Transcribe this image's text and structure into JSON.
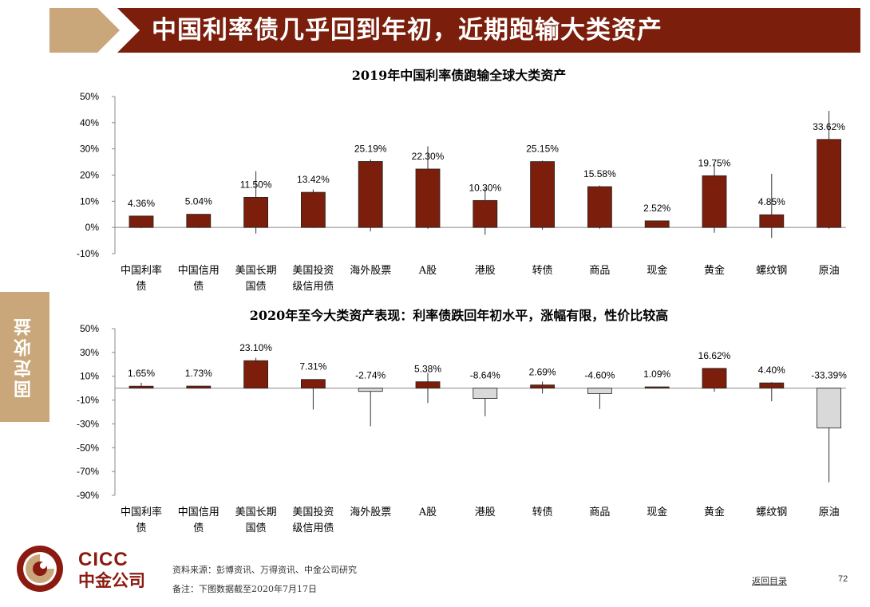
{
  "header": {
    "title": "中国利率债几乎回到年初，近期跑输大类资产"
  },
  "side_tab": {
    "label": "固定收益"
  },
  "colors": {
    "title_bar": "#7b1e0c",
    "chevron": "#c9a77b",
    "bar_positive": "#7b1e0c",
    "bar_negative": "#d9d9d9"
  },
  "chart_data": [
    {
      "type": "bar",
      "title": "2019年中国利率债跑输全球大类资产",
      "categories": [
        "中国利率\n债",
        "中国信用\n债",
        "美国长期\n国债",
        "美国投资\n级信用债",
        "海外股票",
        "A股",
        "港股",
        "转债",
        "商品",
        "现金",
        "黄金",
        "螺纹钢",
        "原油"
      ],
      "values": [
        4.36,
        5.04,
        11.5,
        13.42,
        25.19,
        22.3,
        10.3,
        25.15,
        15.58,
        2.52,
        19.75,
        4.85,
        33.62
      ],
      "labels": [
        "4.36%",
        "5.04%",
        "11.50%",
        "13.42%",
        "25.19%",
        "22.30%",
        "10.30%",
        "25.15%",
        "15.58%",
        "2.52%",
        "19.75%",
        "4.85%",
        "33.62%"
      ],
      "range_high": [
        4.4,
        5.1,
        21.5,
        14.5,
        26.0,
        31.0,
        15.0,
        25.5,
        16.0,
        2.6,
        24.5,
        20.5,
        44.5
      ],
      "range_low": [
        -0.3,
        -0.2,
        -2.3,
        -0.2,
        -1.5,
        -0.5,
        -2.8,
        -0.8,
        -0.5,
        -0.1,
        -2.0,
        -4.0,
        -0.5
      ],
      "yticks": [
        "50%",
        "40%",
        "30%",
        "20%",
        "10%",
        "0%",
        "-10%"
      ],
      "ylim": [
        -10,
        50
      ],
      "grid": false
    },
    {
      "type": "bar",
      "title": "2020年至今大类资产表现：利率债跌回年初水平，涨幅有限，性价比较高",
      "categories": [
        "中国利率\n债",
        "中国信用\n债",
        "美国长期\n国债",
        "美国投资\n级信用债",
        "海外股票",
        "A股",
        "港股",
        "转债",
        "商品",
        "现金",
        "黄金",
        "螺纹钢",
        "原油"
      ],
      "values": [
        1.65,
        1.73,
        23.1,
        7.31,
        -2.74,
        5.38,
        -8.64,
        2.69,
        -4.6,
        1.09,
        16.62,
        4.4,
        -33.39
      ],
      "labels": [
        "1.65%",
        "1.73%",
        "23.10%",
        "7.31%",
        "-2.74%",
        "5.38%",
        "-8.64%",
        "2.69%",
        "-4.60%",
        "1.09%",
        "16.62%",
        "4.40%",
        "-33.39%"
      ],
      "range_high": [
        4.5,
        2.0,
        25.5,
        7.5,
        0.0,
        13.0,
        0.0,
        5.5,
        0.0,
        1.2,
        17.0,
        5.0,
        0.0
      ],
      "range_low": [
        0.0,
        0.0,
        0.0,
        -18.0,
        -32.0,
        -12.5,
        -23.5,
        -4.5,
        -17.5,
        0.0,
        -3.0,
        -11.0,
        -79.0
      ],
      "yticks": [
        "50%",
        "30%",
        "10%",
        "-10%",
        "-30%",
        "-50%",
        "-70%",
        "-90%"
      ],
      "ylim": [
        -90,
        50
      ],
      "grid": false
    }
  ],
  "footer": {
    "logo_en": "CICC",
    "logo_cn": "中金公司",
    "source": "资料来源：彭博资讯、万得资讯、中金公司研究",
    "note": "备注：下图数据截至2020年7月17日",
    "back_link": "返回目录",
    "page_number": "72"
  }
}
